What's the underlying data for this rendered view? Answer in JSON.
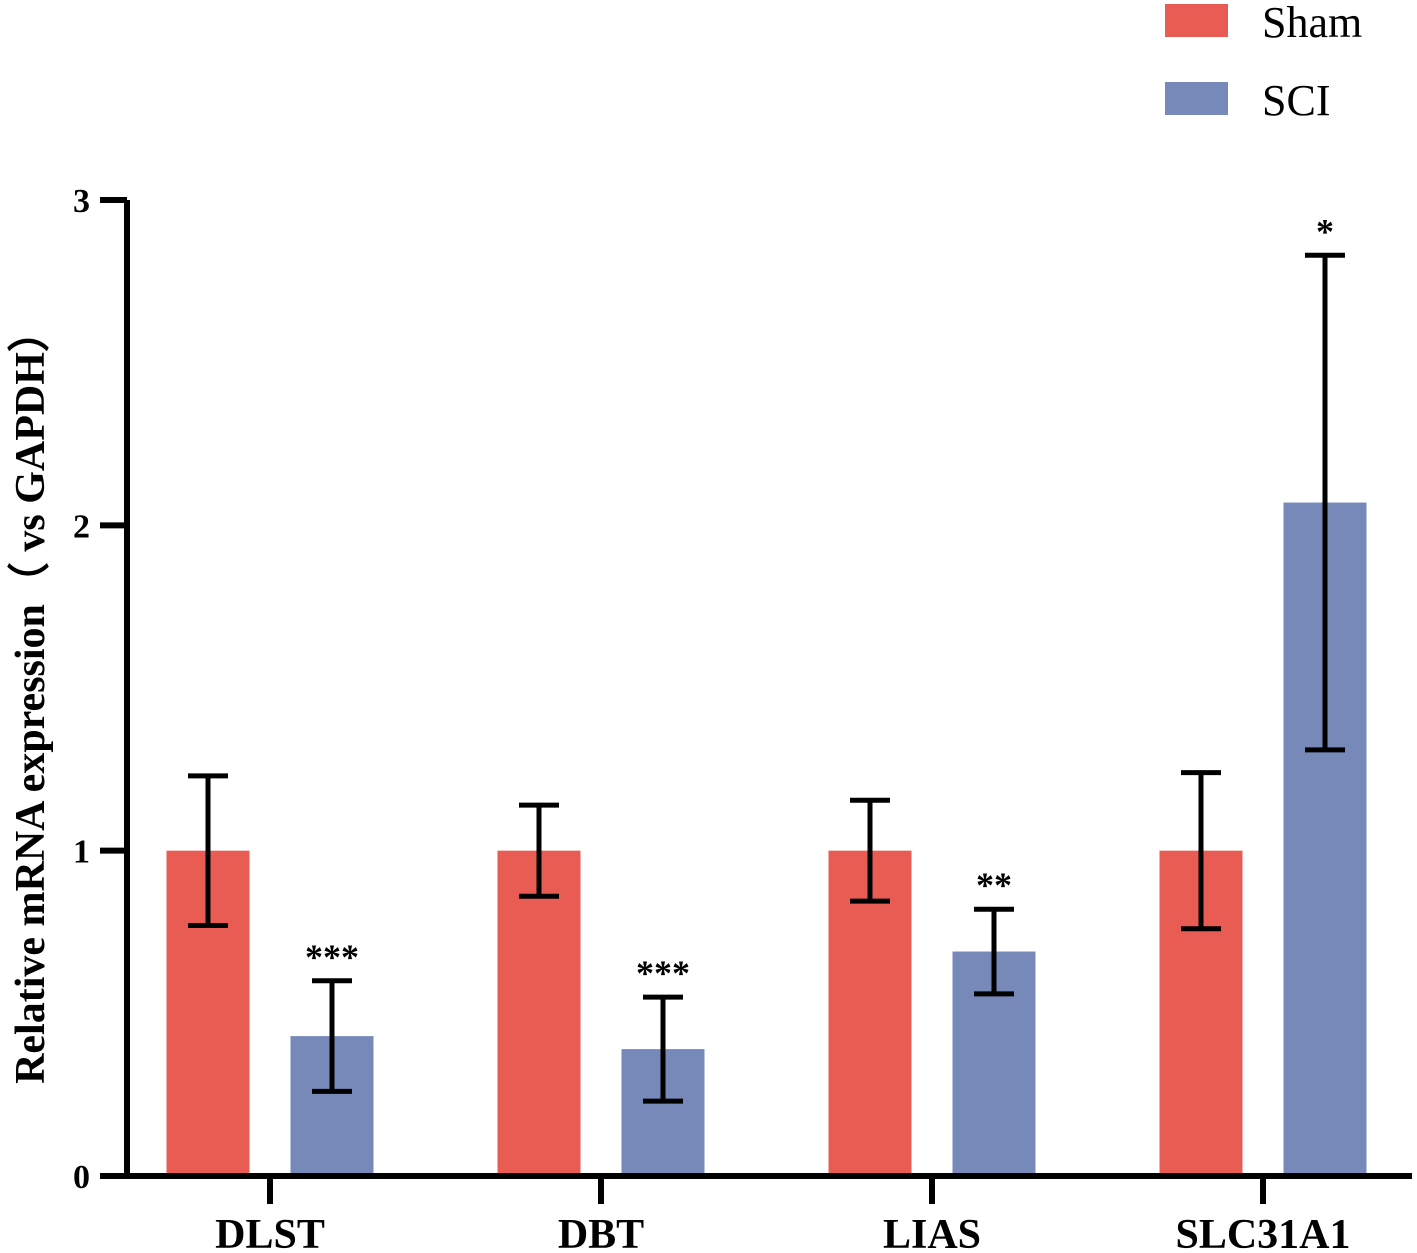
{
  "chart_data": {
    "type": "bar",
    "title": "",
    "xlabel": "",
    "ylabel": "Relative mRNA expression（ vs GAPDH）",
    "ylim": [
      0,
      3
    ],
    "yticks": [
      "0",
      "1",
      "2",
      "3"
    ],
    "grid": false,
    "legend_position": "top-right",
    "categories": [
      "DLST",
      "DBT",
      "LIAS",
      "SLC31A1"
    ],
    "series": [
      {
        "name": "Sham",
        "color": "#e85c53",
        "values": [
          1.0,
          1.0,
          1.0,
          1.0
        ],
        "error": [
          0.23,
          0.14,
          0.155,
          0.24
        ],
        "significance": [
          "",
          "",
          "",
          ""
        ]
      },
      {
        "name": "SCI",
        "color": "#7689b8",
        "values": [
          0.43,
          0.39,
          0.69,
          2.07
        ],
        "error": [
          0.17,
          0.16,
          0.13,
          0.76
        ],
        "significance": [
          "***",
          "***",
          "**",
          "*"
        ]
      }
    ]
  }
}
